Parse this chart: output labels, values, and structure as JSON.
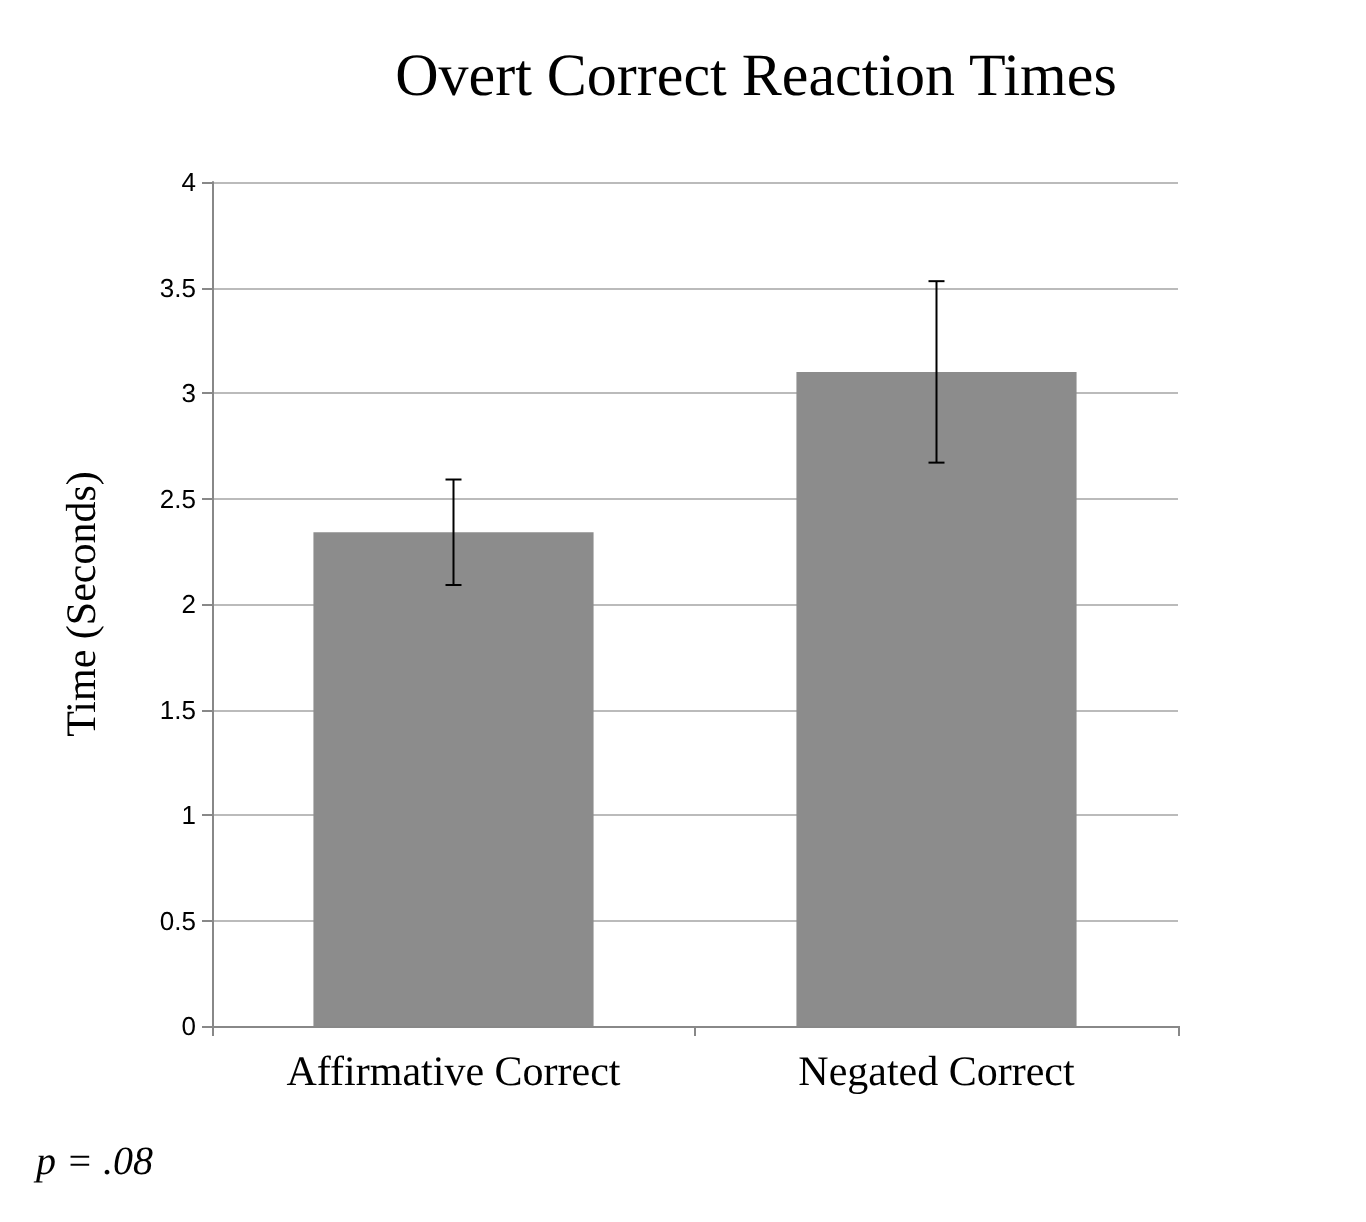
{
  "chart_data": {
    "type": "bar",
    "title": "Overt Correct Reaction Times",
    "ylabel": "Time (Seconds)",
    "categories": [
      "Affirmative Correct",
      "Negated Correct"
    ],
    "values": [
      2.34,
      3.1
    ],
    "errors": [
      [
        2.09,
        2.59
      ],
      [
        2.67,
        3.53
      ]
    ],
    "color": "#8c8c8c",
    "ylim": [
      0,
      4
    ],
    "yticks": [
      0,
      0.5,
      1,
      1.5,
      2,
      2.5,
      3,
      3.5,
      4
    ],
    "grid": "y",
    "annotations": [
      "p = .08"
    ]
  }
}
